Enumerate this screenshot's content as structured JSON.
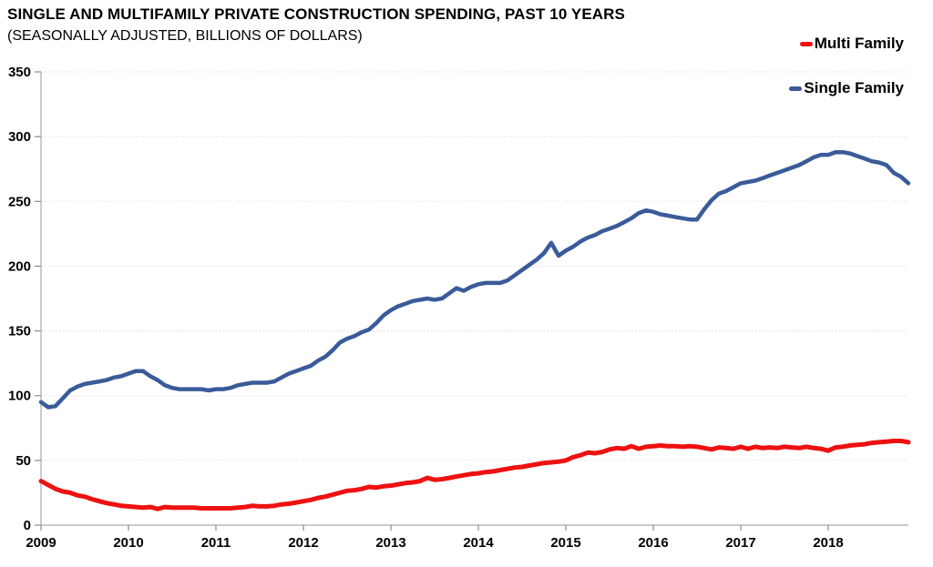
{
  "chart_data": {
    "type": "line",
    "title": "SINGLE AND MULTIFAMILY PRIVATE CONSTRUCTION SPENDING, PAST 10 YEARS",
    "subtitle": "(SEASONALLY ADJUSTED, BILLIONS OF DOLLARS)",
    "x_unit": "month",
    "x_start": "2009-01",
    "x_end": "2018-12",
    "x_tick_labels": [
      "2009",
      "2010",
      "2011",
      "2012",
      "2013",
      "2014",
      "2015",
      "2016",
      "2017",
      "2018"
    ],
    "ylim": [
      0,
      350
    ],
    "y_ticks": [
      0,
      50,
      100,
      150,
      200,
      250,
      300,
      350
    ],
    "grid": "horizontal-dotted",
    "legend_position": "top-right",
    "series": [
      {
        "name": "Multi Family",
        "color": "#EE1111",
        "values": [
          34,
          31,
          28,
          26,
          25,
          23,
          22,
          20,
          18.5,
          17,
          16,
          15,
          14.5,
          14,
          13.5,
          14,
          12.5,
          14,
          13.5,
          13.5,
          13.5,
          13.5,
          13,
          13,
          13,
          13,
          13,
          13.5,
          14,
          15,
          14.5,
          14.5,
          15,
          16,
          16.5,
          17.5,
          18.5,
          19.5,
          21,
          22,
          23.5,
          25,
          26.5,
          27,
          28,
          29.5,
          29,
          30,
          30.5,
          31.5,
          32.5,
          33,
          34,
          36.5,
          35,
          35.5,
          36.5,
          37.5,
          38.5,
          39.5,
          40,
          41,
          41.5,
          42.5,
          43.5,
          44.5,
          45,
          46,
          47,
          48,
          48.5,
          49,
          50,
          52.5,
          54,
          56,
          55.5,
          56.5,
          58.5,
          59.5,
          59,
          61,
          59,
          60.5,
          61,
          61.5,
          61,
          61,
          60.5,
          61,
          60.5,
          59.5,
          58.5,
          60,
          59.5,
          59,
          60.5,
          59,
          60.5,
          59.5,
          60,
          59.5,
          60.5,
          60,
          59.5,
          60.5,
          59.5,
          59,
          57.5,
          60,
          60.5,
          61.5,
          62,
          62.5,
          63.5,
          64,
          64.5,
          65,
          65,
          64
        ]
      },
      {
        "name": "Single Family",
        "color": "#3A5B99",
        "values": [
          95,
          91,
          92,
          98,
          104,
          107,
          109,
          110,
          111,
          112,
          114,
          115,
          117,
          119,
          119,
          115,
          112,
          108,
          106,
          105,
          105,
          105,
          105,
          104,
          105,
          105,
          106,
          108,
          109,
          110,
          110,
          110,
          111,
          114,
          117,
          119,
          121,
          123,
          127,
          130,
          135,
          141,
          144,
          146,
          149,
          151,
          156,
          162,
          166,
          169,
          171,
          173,
          174,
          175,
          174,
          175,
          179,
          183,
          181,
          184,
          186,
          187,
          187,
          187,
          189,
          193,
          197,
          201,
          205,
          210,
          218,
          208,
          212,
          215,
          219,
          222,
          224,
          227,
          229,
          231,
          234,
          237,
          241,
          243,
          242,
          240,
          239,
          238,
          237,
          236,
          236,
          244,
          251,
          256,
          258,
          261,
          264,
          265,
          266,
          268,
          270,
          272,
          274,
          276,
          278,
          281,
          284,
          286,
          286,
          288,
          288,
          287,
          285,
          283,
          281,
          280,
          278,
          272,
          269,
          264
        ]
      }
    ]
  },
  "colors": {
    "axis": "#ABABAB",
    "tick": "#8C8C8C",
    "gridline": "#DCDCDC",
    "label": "#000000",
    "background": "#FFFFFF"
  }
}
